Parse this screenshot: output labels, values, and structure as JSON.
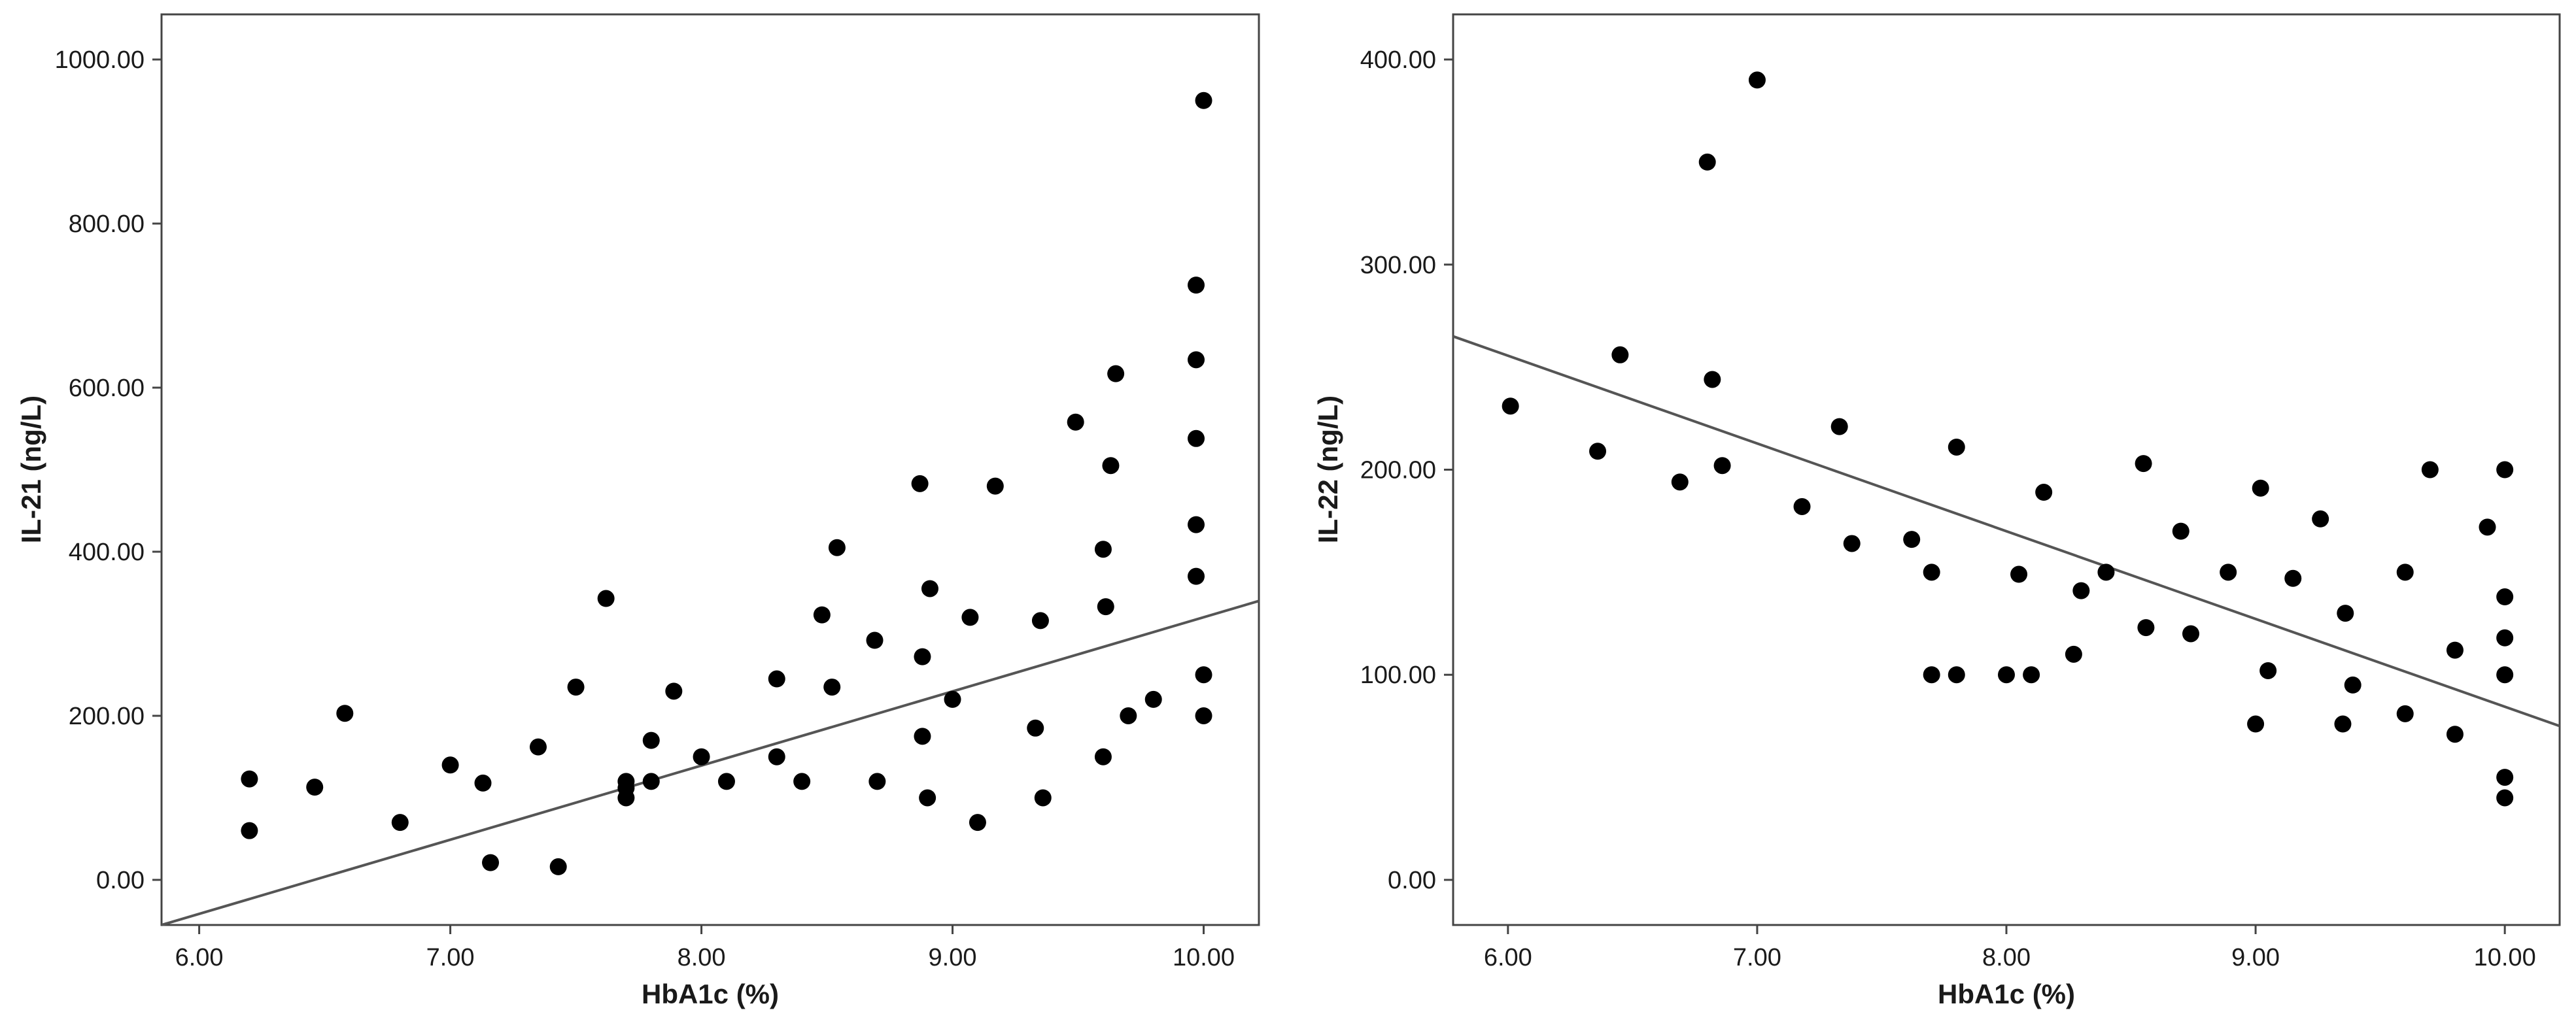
{
  "chart_data": [
    {
      "type": "scatter",
      "title": "",
      "xlabel": "HbA1c (%)",
      "ylabel": "IL-21 (ng/L)",
      "xlim": [
        5.85,
        10.22
      ],
      "ylim": [
        -55,
        1055
      ],
      "xticks": [
        6,
        7,
        8,
        9,
        10
      ],
      "xtick_labels": [
        "6.00",
        "7.00",
        "8.00",
        "9.00",
        "10.00"
      ],
      "yticks": [
        0,
        200,
        400,
        600,
        800,
        1000
      ],
      "ytick_labels": [
        "0.00",
        "200.00",
        "400.00",
        "600.00",
        "800.00",
        "1000.00"
      ],
      "grid": false,
      "fit_line": {
        "x": [
          5.85,
          10.22
        ],
        "y": [
          -55,
          340
        ]
      },
      "points": [
        [
          6.2,
          123
        ],
        [
          6.2,
          60
        ],
        [
          6.46,
          113
        ],
        [
          6.58,
          203
        ],
        [
          6.8,
          70
        ],
        [
          7.0,
          140
        ],
        [
          7.13,
          118
        ],
        [
          7.16,
          21
        ],
        [
          7.35,
          162
        ],
        [
          7.43,
          16
        ],
        [
          7.5,
          235
        ],
        [
          7.62,
          343
        ],
        [
          7.7,
          100
        ],
        [
          7.7,
          120
        ],
        [
          7.7,
          112
        ],
        [
          7.8,
          170
        ],
        [
          7.8,
          120
        ],
        [
          7.89,
          230
        ],
        [
          8.0,
          150
        ],
        [
          8.1,
          120
        ],
        [
          8.3,
          150
        ],
        [
          8.3,
          245
        ],
        [
          8.4,
          120
        ],
        [
          8.48,
          323
        ],
        [
          8.52,
          235
        ],
        [
          8.54,
          405
        ],
        [
          8.69,
          292
        ],
        [
          8.7,
          120
        ],
        [
          8.87,
          483
        ],
        [
          8.88,
          272
        ],
        [
          8.88,
          175
        ],
        [
          8.9,
          100
        ],
        [
          8.91,
          355
        ],
        [
          9.0,
          220
        ],
        [
          9.07,
          320
        ],
        [
          9.1,
          70
        ],
        [
          9.17,
          480
        ],
        [
          9.33,
          185
        ],
        [
          9.35,
          316
        ],
        [
          9.36,
          100
        ],
        [
          9.49,
          558
        ],
        [
          9.6,
          150
        ],
        [
          9.6,
          403
        ],
        [
          9.61,
          333
        ],
        [
          9.63,
          505
        ],
        [
          9.65,
          617
        ],
        [
          9.7,
          200
        ],
        [
          9.8,
          220
        ],
        [
          9.97,
          725
        ],
        [
          9.97,
          634
        ],
        [
          9.97,
          538
        ],
        [
          9.97,
          433
        ],
        [
          9.97,
          370
        ],
        [
          10.0,
          950
        ],
        [
          10.0,
          250
        ],
        [
          10.0,
          200
        ]
      ]
    },
    {
      "type": "scatter",
      "title": "",
      "xlabel": "HbA1c (%)",
      "ylabel": "IL-22 (ng/L)",
      "xlim": [
        5.78,
        10.22
      ],
      "ylim": [
        -22,
        422
      ],
      "xticks": [
        6,
        7,
        8,
        9,
        10
      ],
      "xtick_labels": [
        "6.00",
        "7.00",
        "8.00",
        "9.00",
        "10.00"
      ],
      "yticks": [
        0,
        100,
        200,
        300,
        400
      ],
      "ytick_labels": [
        "0.00",
        "100.00",
        "200.00",
        "300.00",
        "400.00"
      ],
      "grid": false,
      "fit_line": {
        "x": [
          5.78,
          10.22
        ],
        "y": [
          265,
          75
        ]
      },
      "points": [
        [
          6.01,
          231
        ],
        [
          6.36,
          209
        ],
        [
          6.45,
          256
        ],
        [
          6.69,
          194
        ],
        [
          6.8,
          350
        ],
        [
          6.82,
          244
        ],
        [
          6.86,
          202
        ],
        [
          7.0,
          390
        ],
        [
          7.18,
          182
        ],
        [
          7.33,
          221
        ],
        [
          7.38,
          164
        ],
        [
          7.62,
          166
        ],
        [
          7.7,
          150
        ],
        [
          7.7,
          100
        ],
        [
          7.8,
          211
        ],
        [
          7.8,
          100
        ],
        [
          8.0,
          100
        ],
        [
          8.05,
          149
        ],
        [
          8.1,
          100
        ],
        [
          8.15,
          189
        ],
        [
          8.27,
          110
        ],
        [
          8.3,
          141
        ],
        [
          8.4,
          150
        ],
        [
          8.55,
          203
        ],
        [
          8.56,
          123
        ],
        [
          8.7,
          170
        ],
        [
          8.74,
          120
        ],
        [
          8.89,
          150
        ],
        [
          9.0,
          76
        ],
        [
          9.02,
          191
        ],
        [
          9.05,
          102
        ],
        [
          9.15,
          147
        ],
        [
          9.26,
          176
        ],
        [
          9.35,
          76
        ],
        [
          9.36,
          130
        ],
        [
          9.39,
          95
        ],
        [
          9.6,
          150
        ],
        [
          9.6,
          81
        ],
        [
          9.7,
          200
        ],
        [
          9.8,
          112
        ],
        [
          9.8,
          71
        ],
        [
          9.93,
          172
        ],
        [
          10.0,
          200
        ],
        [
          10.0,
          138
        ],
        [
          10.0,
          118
        ],
        [
          10.0,
          100
        ],
        [
          10.0,
          50
        ],
        [
          10.0,
          40
        ]
      ]
    }
  ]
}
